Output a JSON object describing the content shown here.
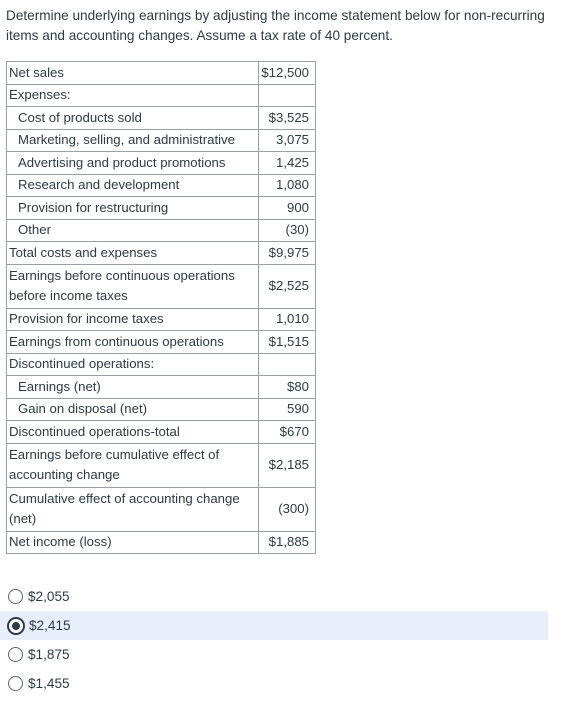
{
  "question": "Determine underlying earnings by adjusting the income statement below for non-recurring items and accounting changes.  Assume a tax rate of 40 percent.",
  "statement": {
    "net_sales": {
      "label": "Net sales",
      "value": "$12,500"
    },
    "expenses_heading": "Expenses:",
    "cogs": {
      "label": "Cost of products sold",
      "value": "$3,525"
    },
    "marketing": {
      "label": "Marketing, selling, and administrative",
      "value": "3,075"
    },
    "advertising": {
      "label": "Advertising and product promotions",
      "value": "1,425"
    },
    "rnd": {
      "label": "Research and development",
      "value": "1,080"
    },
    "restructuring": {
      "label": "Provision for restructuring",
      "value": "900"
    },
    "other": {
      "label": "Other",
      "value": "(30)"
    },
    "total_costs": {
      "label": "Total costs and expenses",
      "value": "$9,975"
    },
    "ebt_continuing": {
      "label": "Earnings before continuous operations before income taxes",
      "value": "$2,525"
    },
    "income_tax": {
      "label": "Provision for income taxes",
      "value": "1,010"
    },
    "earnings_continuing": {
      "label": "Earnings from continuous operations",
      "value": "$1,515"
    },
    "discontinued_heading": "Discontinued operations:",
    "disc_earnings": {
      "label": "Earnings (net)",
      "value": "$80"
    },
    "disc_gain": {
      "label": "Gain on disposal (net)",
      "value": "590"
    },
    "disc_total": {
      "label": "Discontinued operations-total",
      "value": "$670"
    },
    "before_cumulative": {
      "label": "Earnings before cumulative effect of accounting change",
      "value": "$2,185"
    },
    "cumulative_effect": {
      "label": "Cumulative effect of accounting change (net)",
      "value": "(300)"
    },
    "net_income": {
      "label": "Net income (loss)",
      "value": "$1,885"
    }
  },
  "choices": [
    {
      "label": "$2,055",
      "selected": false
    },
    {
      "label": "$2,415",
      "selected": true
    },
    {
      "label": "$1,875",
      "selected": false
    },
    {
      "label": "$1,455",
      "selected": false
    }
  ]
}
